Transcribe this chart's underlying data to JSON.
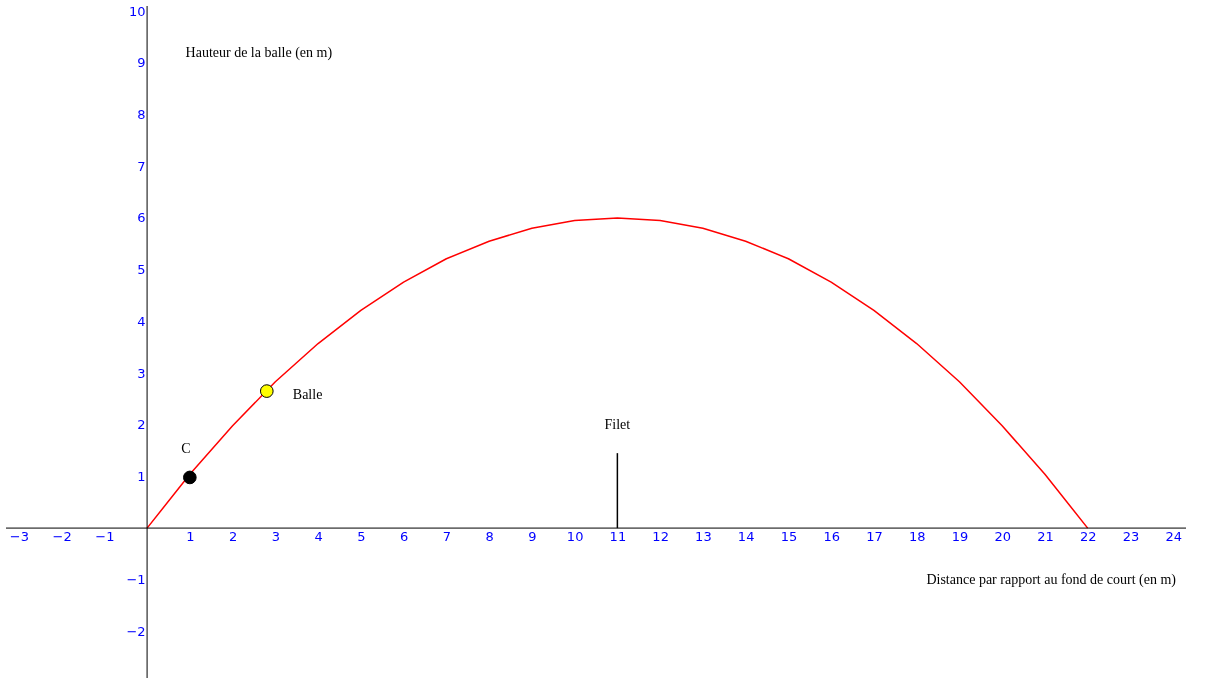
{
  "chart_data": {
    "type": "line",
    "xlabel": "Distance par rapport au fond de court (en m)",
    "ylabel": "Hauteur de la balle (en m)",
    "xlim": [
      -3.3,
      24.3
    ],
    "ylim": [
      -2.9,
      10.1
    ],
    "xticks": [
      -3,
      -2,
      -1,
      1,
      2,
      3,
      4,
      5,
      6,
      7,
      8,
      9,
      10,
      11,
      12,
      13,
      14,
      15,
      16,
      17,
      18,
      19,
      20,
      21,
      22,
      23,
      24
    ],
    "yticks": [
      -2,
      -1,
      1,
      2,
      3,
      4,
      5,
      6,
      7,
      8,
      9,
      10
    ],
    "grid": false,
    "series": [
      {
        "color": "#ff0000",
        "marker": "none",
        "x": [
          0,
          1,
          2,
          3,
          4,
          5,
          6,
          7,
          8,
          9,
          10,
          11,
          12,
          13,
          14,
          15,
          16,
          17,
          18,
          19,
          20,
          21,
          22
        ],
        "values": [
          0,
          1.04,
          1.98,
          2.83,
          3.57,
          4.21,
          4.76,
          5.21,
          5.55,
          5.8,
          5.95,
          6,
          5.95,
          5.8,
          5.55,
          5.21,
          4.76,
          4.21,
          3.57,
          2.83,
          1.98,
          1.04,
          0
        ]
      },
      {
        "name": "Filet",
        "color": "#000000",
        "marker": "none",
        "x": [
          11,
          11
        ],
        "values": [
          0,
          1.45
        ]
      },
      {
        "type": "scatter",
        "name": "C",
        "color": "#000000",
        "marker": "circle",
        "x": [
          1
        ],
        "values": [
          0.98
        ]
      },
      {
        "type": "scatter",
        "name": "Balle",
        "color": "#ffff00",
        "marker": "circle",
        "x": [
          2.8
        ],
        "values": [
          2.65
        ]
      }
    ]
  }
}
